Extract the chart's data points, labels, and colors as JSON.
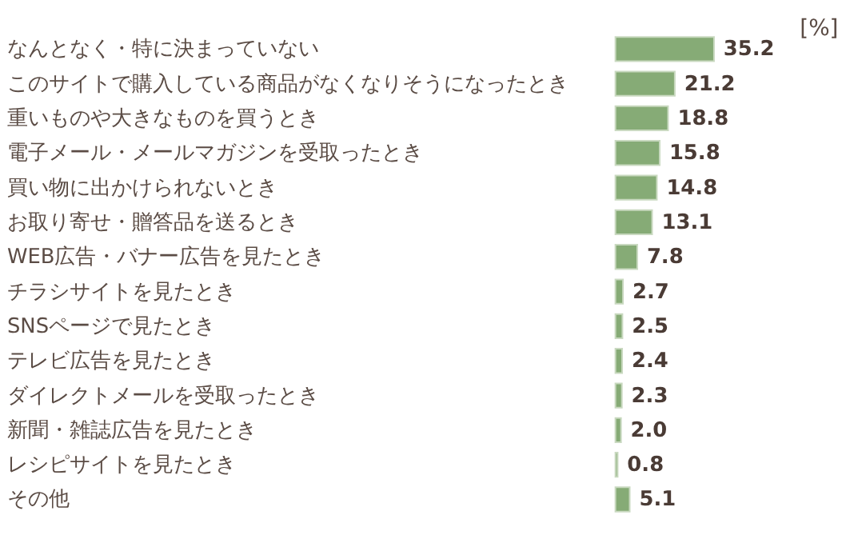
{
  "chart_data": {
    "type": "bar",
    "orientation": "horizontal",
    "color": "#86ab76",
    "categories": [
      "なんとなく・特に決まっていない",
      "このサイトで購入している商品がなくなりそうになったとき",
      "重いものや大きなものを買うとき",
      "電子メール・メールマガジンを受取ったとき",
      "買い物に出かけられないとき",
      "お取り寄せ・贈答品を送るとき",
      "WEB広告・バナー広告を見たとき",
      "チラシサイトを見たとき",
      "SNSページで見たとき",
      "テレビ広告を見たとき",
      "ダイレクトメールを受取ったとき",
      "新聞・雑誌広告を見たとき",
      "レシピサイトを見たとき",
      "その他"
    ],
    "values": [
      35.2,
      21.2,
      18.8,
      15.8,
      14.8,
      13.1,
      7.8,
      2.7,
      2.5,
      2.4,
      2.3,
      2.0,
      0.8,
      5.1
    ],
    "value_labels": [
      "35.2",
      "21.2",
      "18.8",
      "15.8",
      "14.8",
      "13.1",
      "7.8",
      "2.7",
      "2.5",
      "2.4",
      "2.3",
      "2.0",
      "0.8",
      "5.1"
    ],
    "annotations": [
      "[%]"
    ]
  }
}
